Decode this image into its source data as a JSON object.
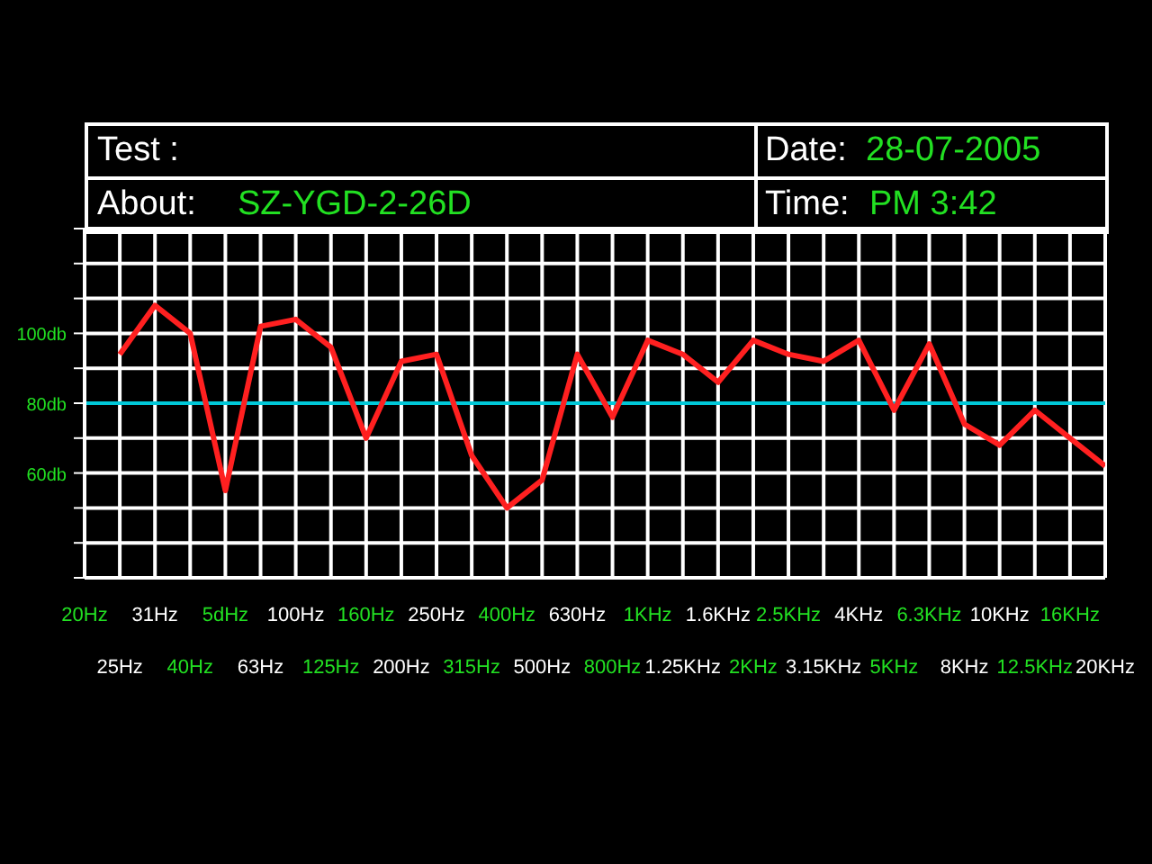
{
  "chart_data": {
    "type": "line",
    "annotations": [
      "Test :",
      "About:",
      "SZ-YGD-2-26D",
      "Date:",
      "28-07-2005",
      "Time:",
      "PM 3:42"
    ],
    "categories": [
      "20Hz",
      "25Hz",
      "31Hz",
      "40Hz",
      "5dHz",
      "63Hz",
      "100Hz",
      "125Hz",
      "160Hz",
      "200Hz",
      "250Hz",
      "315Hz",
      "400Hz",
      "500Hz",
      "630Hz",
      "800Hz",
      "1KHz",
      "1.25KHz",
      "1.6KHz",
      "2KHz",
      "2.5KHz",
      "3.15KHz",
      "4KHz",
      "5KHz",
      "6.3KHz",
      "8KHz",
      "10KHz",
      "12.5KHz",
      "16KHz",
      "20KHz"
    ],
    "series": [
      {
        "color": "#ff2020",
        "values": [
          null,
          94,
          108,
          100,
          55,
          102,
          104,
          96,
          70,
          92,
          94,
          65,
          50,
          58,
          94,
          76,
          98,
          94,
          86,
          98,
          94,
          92,
          98,
          78,
          97,
          74,
          68,
          78,
          70,
          62
        ]
      }
    ],
    "ylim": [
      30,
      130
    ],
    "yticks": [
      {
        "value": 30,
        "label": null
      },
      {
        "value": 40,
        "label": null
      },
      {
        "value": 50,
        "label": null
      },
      {
        "value": 60,
        "label": "60db"
      },
      {
        "value": 70,
        "label": null
      },
      {
        "value": 80,
        "label": "80db"
      },
      {
        "value": 90,
        "label": null
      },
      {
        "value": 100,
        "label": "100db"
      },
      {
        "value": 110,
        "label": null
      },
      {
        "value": 120,
        "label": null
      },
      {
        "value": 130,
        "label": null
      }
    ],
    "ref_lines": [
      {
        "axis": "y",
        "value": 80,
        "color": "#00c8d8"
      }
    ],
    "grid": true,
    "marker": "none",
    "line_style": "solid"
  }
}
